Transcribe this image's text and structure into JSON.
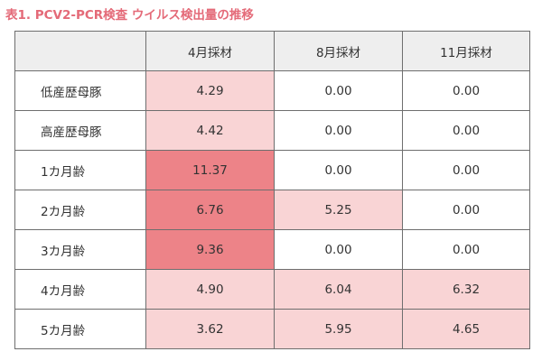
{
  "caption": "表1. PCV2-PCR検査 ウイルス検出量の推移",
  "table": {
    "corner": "",
    "columns": [
      "4月採材",
      "8月採材",
      "11月採材"
    ],
    "rows": [
      {
        "label": "低産歴母豚",
        "values": [
          "4.29",
          "0.00",
          "0.00"
        ],
        "levels": [
          1,
          0,
          0
        ]
      },
      {
        "label": "高産歴母豚",
        "values": [
          "4.42",
          "0.00",
          "0.00"
        ],
        "levels": [
          1,
          0,
          0
        ]
      },
      {
        "label": "1カ月齢",
        "values": [
          "11.37",
          "0.00",
          "0.00"
        ],
        "levels": [
          2,
          0,
          0
        ]
      },
      {
        "label": "2カ月齢",
        "values": [
          "6.76",
          "5.25",
          "0.00"
        ],
        "levels": [
          2,
          1,
          0
        ]
      },
      {
        "label": "3カ月齢",
        "values": [
          "9.36",
          "0.00",
          "0.00"
        ],
        "levels": [
          2,
          0,
          0
        ]
      },
      {
        "label": "4カ月齢",
        "values": [
          "4.90",
          "6.04",
          "6.32"
        ],
        "levels": [
          1,
          1,
          1
        ]
      },
      {
        "label": "5カ月齢",
        "values": [
          "3.62",
          "5.95",
          "4.65"
        ],
        "levels": [
          1,
          1,
          1
        ]
      }
    ]
  },
  "colors": {
    "caption": "#e46a78",
    "high": "#ed8388",
    "mid": "#f9d4d5",
    "header_bg": "#eeeeee"
  }
}
